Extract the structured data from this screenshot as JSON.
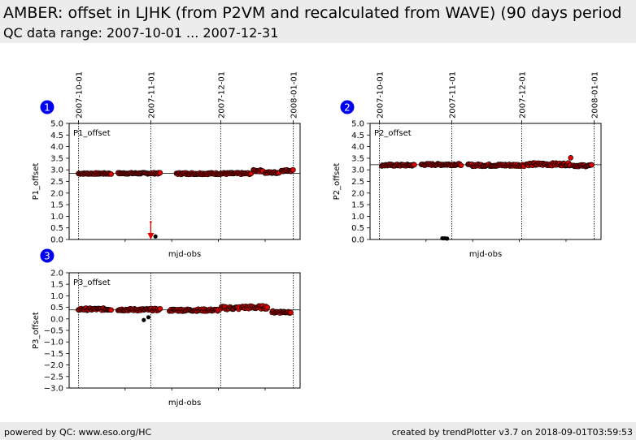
{
  "header": {
    "title": "AMBER: offset in LJHK (from P2VM and recalculated from WAVE) (90 days period",
    "subtitle": "QC data range: 2007-10-01 ... 2007-12-31"
  },
  "footer": {
    "left": "powered by QC: www.eso.org/HC",
    "right": "created by trendPlotter v3.7 on 2018-09-01T03:59:53"
  },
  "colors": {
    "marker": "#e00000",
    "outlier": "#000000",
    "badge": "#0000ee",
    "arrow": "#e00000"
  },
  "chart_data": [
    {
      "type": "scatter",
      "badge": "1",
      "series_label": "P1_offset",
      "xlabel": "mjd-obs",
      "ylabel": "P1_offset",
      "x_ticks": [
        "2007-10-01",
        "2007-11-01",
        "2007-12-01",
        "2008-01-01"
      ],
      "xlim": [
        "2007-09-27",
        "2008-01-04"
      ],
      "ylim": [
        0.0,
        5.0
      ],
      "y_ticks": [
        0.0,
        0.5,
        1.0,
        1.5,
        2.0,
        2.5,
        3.0,
        3.5,
        4.0,
        4.5,
        5.0
      ],
      "reference_line": 2.85,
      "segments": [
        {
          "from": "2007-10-01",
          "to": "2007-10-15",
          "base": 2.84,
          "amp": 0.03
        },
        {
          "from": "2007-10-18",
          "to": "2007-11-05",
          "base": 2.85,
          "amp": 0.03
        },
        {
          "from": "2007-11-12",
          "to": "2007-12-14",
          "base": 2.84,
          "amp": 0.04
        },
        {
          "from": "2007-12-15",
          "to": "2007-12-19",
          "base": 2.96,
          "amp": 0.04
        },
        {
          "from": "2007-12-20",
          "to": "2007-12-26",
          "base": 2.88,
          "amp": 0.04
        },
        {
          "from": "2007-12-27",
          "to": "2008-01-01",
          "base": 2.97,
          "amp": 0.04
        }
      ],
      "outliers": [
        {
          "x": "2007-11-03",
          "y": 0.13
        }
      ],
      "arrow": {
        "x": "2007-11-01",
        "from": 0.75,
        "to": 0.0
      }
    },
    {
      "type": "scatter",
      "badge": "2",
      "series_label": "P2_offset",
      "xlabel": "mjd-obs",
      "ylabel": "P2_offset",
      "x_ticks": [
        "2007-10-01",
        "2007-11-01",
        "2007-12-01",
        "2008-01-01"
      ],
      "xlim": [
        "2007-09-27",
        "2008-01-04"
      ],
      "ylim": [
        0.0,
        5.0
      ],
      "y_ticks": [
        0.0,
        0.5,
        1.0,
        1.5,
        2.0,
        2.5,
        3.0,
        3.5,
        4.0,
        4.5,
        5.0
      ],
      "reference_line": 3.22,
      "segments": [
        {
          "from": "2007-10-02",
          "to": "2007-10-16",
          "base": 3.2,
          "amp": 0.04
        },
        {
          "from": "2007-10-19",
          "to": "2007-11-05",
          "base": 3.23,
          "amp": 0.04
        },
        {
          "from": "2007-11-08",
          "to": "2007-12-02",
          "base": 3.2,
          "amp": 0.05
        },
        {
          "from": "2007-12-03",
          "to": "2007-12-22",
          "base": 3.24,
          "amp": 0.06
        },
        {
          "from": "2007-12-23",
          "to": "2007-12-31",
          "base": 3.18,
          "amp": 0.04
        }
      ],
      "outliers": [
        {
          "x": "2007-10-28",
          "y": 0.05
        },
        {
          "x": "2007-10-29",
          "y": 0.05
        },
        {
          "x": "2007-10-30",
          "y": 0.04
        }
      ],
      "extra_points": [
        {
          "x": "2007-12-22",
          "y": 3.52
        }
      ]
    },
    {
      "type": "scatter",
      "badge": "3",
      "series_label": "P3_offset",
      "xlabel": "mjd-obs",
      "ylabel": "P3_offset",
      "x_ticks": [],
      "xlim": [
        "2007-09-27",
        "2008-01-04"
      ],
      "ylim": [
        -3.0,
        2.0
      ],
      "y_ticks": [
        -3.0,
        -2.5,
        -2.0,
        -1.5,
        -1.0,
        -0.5,
        0.0,
        0.5,
        1.0,
        1.5,
        2.0
      ],
      "reference_line": 0.39,
      "segments": [
        {
          "from": "2007-10-01",
          "to": "2007-10-15",
          "base": 0.42,
          "amp": 0.05
        },
        {
          "from": "2007-10-18",
          "to": "2007-11-05",
          "base": 0.4,
          "amp": 0.05
        },
        {
          "from": "2007-11-09",
          "to": "2007-11-30",
          "base": 0.38,
          "amp": 0.05
        },
        {
          "from": "2007-12-01",
          "to": "2007-12-09",
          "base": 0.47,
          "amp": 0.07
        },
        {
          "from": "2007-12-10",
          "to": "2007-12-21",
          "base": 0.5,
          "amp": 0.07
        },
        {
          "from": "2007-12-23",
          "to": "2007-12-31",
          "base": 0.3,
          "amp": 0.05
        }
      ],
      "outliers": [
        {
          "x": "2007-10-29",
          "y": -0.05
        },
        {
          "x": "2007-10-31",
          "y": 0.07
        }
      ]
    }
  ]
}
